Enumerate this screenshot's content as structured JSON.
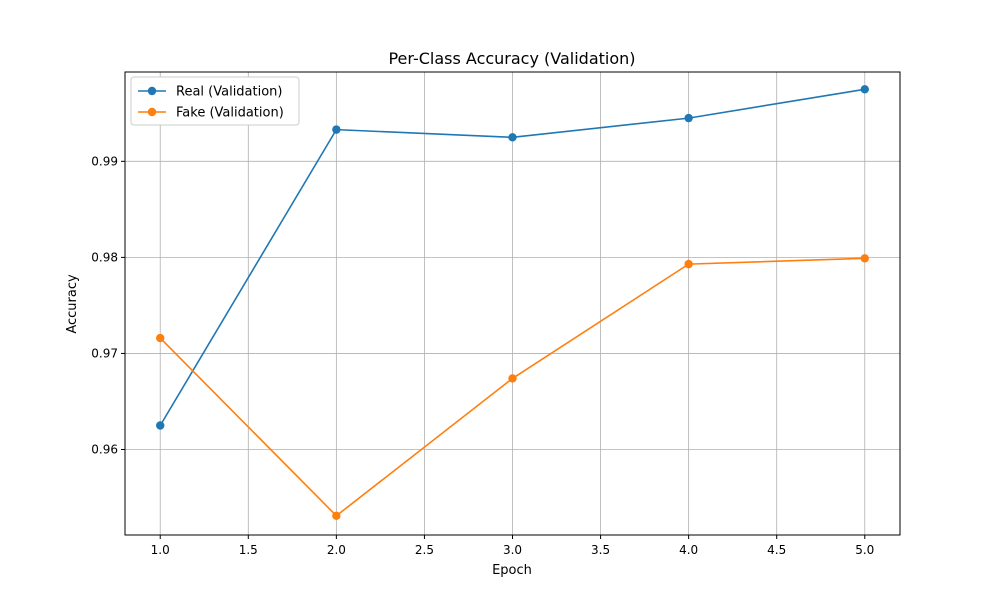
{
  "chart_data": {
    "type": "line",
    "title": "Per-Class Accuracy (Validation)",
    "xlabel": "Epoch",
    "ylabel": "Accuracy",
    "xlim": [
      0.8,
      5.2
    ],
    "ylim": [
      0.9511,
      0.9993
    ],
    "x_ticks": [
      1.0,
      1.5,
      2.0,
      2.5,
      3.0,
      3.5,
      4.0,
      4.5,
      5.0
    ],
    "x_tick_labels": [
      "1.0",
      "1.5",
      "2.0",
      "2.5",
      "3.0",
      "3.5",
      "4.0",
      "4.5",
      "5.0"
    ],
    "y_ticks": [
      0.96,
      0.97,
      0.98,
      0.99
    ],
    "y_tick_labels": [
      "0.96",
      "0.97",
      "0.98",
      "0.99"
    ],
    "grid": true,
    "legend_position": "top-left",
    "x": [
      1,
      2,
      3,
      4,
      5
    ],
    "series": [
      {
        "name": "Real (Validation)",
        "color": "#1f77b4",
        "marker": "circle",
        "values": [
          0.9625,
          0.9933,
          0.9925,
          0.9945,
          0.9975
        ]
      },
      {
        "name": "Fake (Validation)",
        "color": "#ff7f0e",
        "marker": "circle",
        "values": [
          0.9716,
          0.9531,
          0.9674,
          0.9793,
          0.9799
        ]
      }
    ]
  }
}
